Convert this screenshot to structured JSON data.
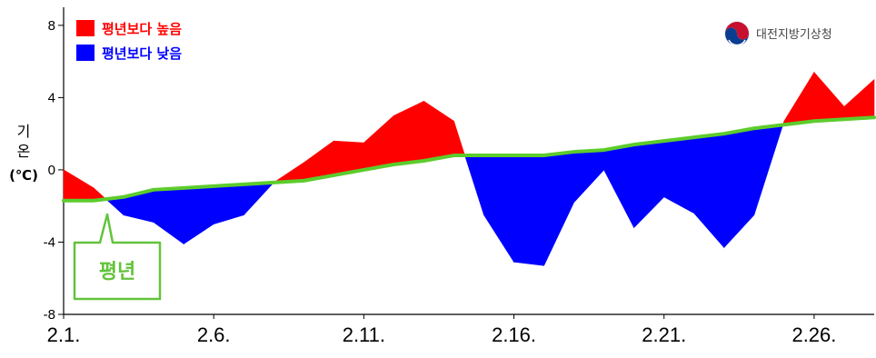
{
  "chart_data": {
    "type": "area",
    "x": [
      1,
      2,
      3,
      4,
      5,
      6,
      7,
      8,
      9,
      10,
      11,
      12,
      13,
      14,
      15,
      16,
      17,
      18,
      19,
      20,
      21,
      22,
      23,
      24,
      25,
      26,
      27,
      28
    ],
    "tick_labels": [
      {
        "x": 1,
        "label": "2.1."
      },
      {
        "x": 6,
        "label": "2.6."
      },
      {
        "x": 11,
        "label": "2.11."
      },
      {
        "x": 16,
        "label": "2.16."
      },
      {
        "x": 21,
        "label": "2.21."
      },
      {
        "x": 26,
        "label": "2.26."
      }
    ],
    "series": [
      {
        "name": "",
        "role": "observed",
        "values": [
          0.0,
          -1.0,
          -2.5,
          -2.9,
          -4.1,
          -3.0,
          -2.5,
          -0.7,
          0.4,
          1.6,
          1.5,
          3.0,
          3.8,
          2.7,
          -2.5,
          -5.1,
          -5.3,
          -1.8,
          0.0,
          -3.2,
          -1.5,
          -2.4,
          -4.3,
          -2.5,
          2.7,
          5.4,
          3.5,
          5.0
        ]
      },
      {
        "name": "평년",
        "role": "normal",
        "values": [
          -1.7,
          -1.7,
          -1.5,
          -1.1,
          -1.0,
          -0.9,
          -0.8,
          -0.7,
          -0.6,
          -0.3,
          0.0,
          0.3,
          0.5,
          0.8,
          0.8,
          0.8,
          0.8,
          1.0,
          1.1,
          1.4,
          1.6,
          1.8,
          2.0,
          2.3,
          2.5,
          2.7,
          2.8,
          2.9
        ]
      }
    ],
    "ylim": [
      -8,
      9
    ],
    "yticks": [
      8,
      4,
      0,
      -4,
      -8
    ],
    "ylabel": {
      "line1": "기",
      "line2": "온",
      "line3": "(℃)"
    },
    "legend": [
      {
        "label": "평년보다 높음",
        "color": "#ff0000"
      },
      {
        "label": "평년보다 낮음",
        "color": "#0000ff"
      }
    ],
    "legend_position": "top-left",
    "grid": false,
    "colors": {
      "above": "#ff0000",
      "below": "#0000ff",
      "normal_line": "#5ccc2c",
      "callout": "#62c33b"
    }
  },
  "callout_label": "평년",
  "org": {
    "name": "대전지방기상청",
    "logo_icon": "korea-gov-logo-icon"
  }
}
